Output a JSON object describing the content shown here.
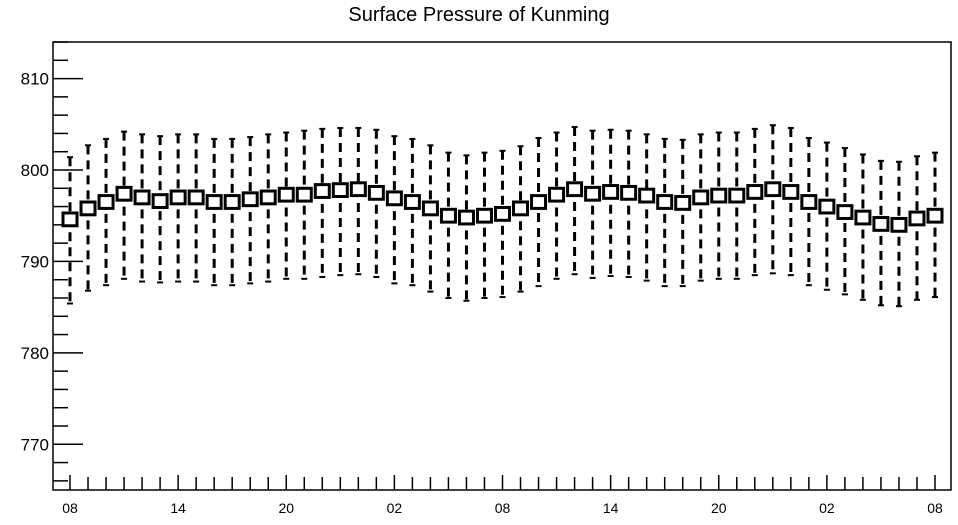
{
  "chart_data": {
    "type": "candlestick",
    "title": "Surface Pressure of Kunming",
    "xlabel": "",
    "ylabel": "",
    "ylim": [
      765,
      814
    ],
    "y_ticks": [
      770,
      780,
      790,
      800,
      810
    ],
    "y_tick_labels": [
      "770",
      "780",
      "790",
      "800",
      "810"
    ],
    "x_tick_labels": [
      "08",
      "14",
      "20",
      "02",
      "08",
      "14",
      "20",
      "02",
      "08"
    ],
    "grid": false,
    "series": [
      {
        "name": "",
        "center": [
          794.6,
          795.8,
          796.5,
          797.4,
          797.0,
          796.6,
          797.0,
          797.0,
          796.5,
          796.5,
          796.8,
          797.0,
          797.3,
          797.3,
          797.7,
          797.8,
          797.9,
          797.5,
          796.9,
          796.5,
          795.8,
          795.0,
          794.8,
          795.0,
          795.2,
          795.8,
          796.5,
          797.3,
          797.9,
          797.4,
          797.6,
          797.5,
          797.2,
          796.5,
          796.4,
          797.0,
          797.2,
          797.2,
          797.6,
          797.9,
          797.6,
          796.5,
          796.0,
          795.4,
          794.8,
          794.1,
          794.0,
          794.7,
          795.0
        ],
        "box_low": [
          793.9,
          795.1,
          795.8,
          796.7,
          796.3,
          795.9,
          796.3,
          796.3,
          795.8,
          795.8,
          796.1,
          796.3,
          796.6,
          796.6,
          797.0,
          797.1,
          797.2,
          796.8,
          796.2,
          795.8,
          795.1,
          794.3,
          794.1,
          794.3,
          794.5,
          795.1,
          795.8,
          796.6,
          797.2,
          796.7,
          796.9,
          796.8,
          796.5,
          795.8,
          795.7,
          796.3,
          796.5,
          796.5,
          796.9,
          797.2,
          796.9,
          795.8,
          795.3,
          794.7,
          794.1,
          793.4,
          793.3,
          794.0,
          794.3
        ],
        "box_high": [
          795.3,
          796.5,
          797.2,
          798.1,
          797.7,
          797.3,
          797.7,
          797.7,
          797.2,
          797.2,
          797.5,
          797.7,
          798.0,
          798.0,
          798.4,
          798.5,
          798.6,
          798.2,
          797.6,
          797.2,
          796.5,
          795.7,
          795.5,
          795.7,
          795.9,
          796.5,
          797.2,
          798.0,
          798.6,
          798.1,
          798.3,
          798.2,
          797.9,
          797.2,
          797.1,
          797.7,
          797.9,
          797.9,
          798.3,
          798.6,
          798.3,
          797.2,
          796.7,
          796.1,
          795.5,
          794.8,
          794.7,
          795.4,
          795.7
        ],
        "whisker_low": [
          785.4,
          786.8,
          787.4,
          788.1,
          787.8,
          787.7,
          787.8,
          787.8,
          787.4,
          787.4,
          787.6,
          787.8,
          788.1,
          788.1,
          788.3,
          788.5,
          788.6,
          788.3,
          787.6,
          787.4,
          786.7,
          786.0,
          785.7,
          786.0,
          786.1,
          786.7,
          787.3,
          788.1,
          788.6,
          788.2,
          788.4,
          788.3,
          787.9,
          787.3,
          787.3,
          787.9,
          788.1,
          788.1,
          788.5,
          788.7,
          788.5,
          787.4,
          786.9,
          786.4,
          785.8,
          785.2,
          785.1,
          785.8,
          786.1
        ],
        "whisker_high": [
          801.4,
          802.7,
          803.4,
          804.2,
          803.9,
          803.7,
          803.9,
          803.9,
          803.4,
          803.4,
          803.6,
          803.9,
          804.1,
          804.3,
          804.5,
          804.6,
          804.6,
          804.4,
          803.7,
          803.4,
          802.7,
          801.9,
          801.6,
          801.9,
          802.1,
          802.6,
          803.5,
          804.1,
          804.7,
          804.3,
          804.4,
          804.3,
          803.9,
          803.4,
          803.3,
          803.9,
          804.1,
          804.1,
          804.5,
          804.9,
          804.6,
          803.5,
          803.0,
          802.4,
          801.7,
          801.0,
          800.9,
          801.5,
          801.9
        ]
      }
    ]
  }
}
